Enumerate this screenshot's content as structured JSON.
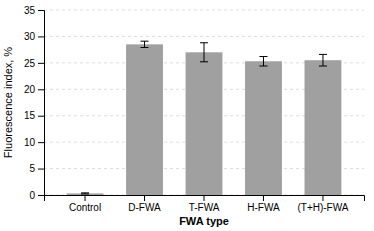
{
  "chart_data": {
    "type": "bar",
    "categories": [
      "Control",
      "D-FWA",
      "T-FWA",
      "H-FWA",
      "(T+H)-FWA"
    ],
    "values": [
      0.3,
      28.5,
      27.0,
      25.3,
      25.5
    ],
    "errors": [
      0.1,
      0.6,
      1.8,
      0.9,
      1.1
    ],
    "color": "#a0a0a0",
    "xlabel": "FWA type",
    "ylabel": "Fluorescence index, %",
    "ylim": [
      0,
      35
    ],
    "yticks": [
      0,
      5,
      10,
      15,
      20,
      25,
      30,
      35
    ],
    "grid": true
  }
}
